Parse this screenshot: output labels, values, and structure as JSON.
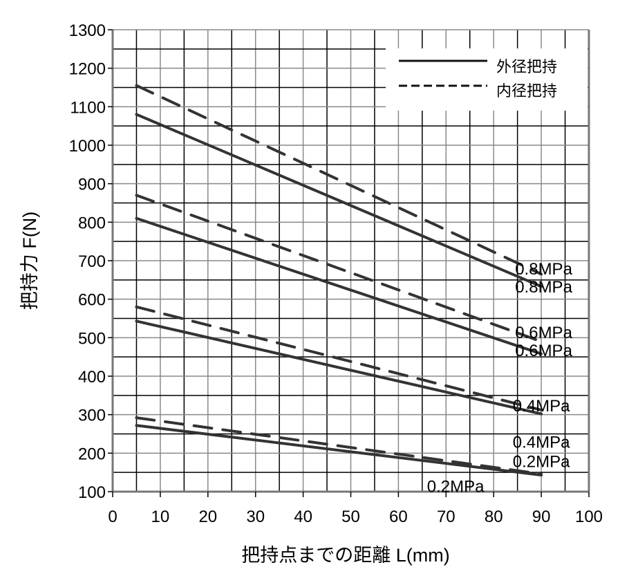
{
  "chart_data": {
    "type": "line",
    "title": "",
    "xlabel": "把持点までの距離  L(mm)",
    "ylabel": "把持力  F(N)",
    "xlim": [
      0,
      100
    ],
    "ylim": [
      100,
      1300
    ],
    "xticks": [
      0,
      10,
      20,
      30,
      40,
      50,
      60,
      70,
      80,
      90,
      100
    ],
    "yticks": [
      100,
      200,
      300,
      400,
      500,
      600,
      700,
      800,
      900,
      1000,
      1100,
      1200,
      1300
    ],
    "grid": true,
    "legend": {
      "placement": "top-right",
      "entries": [
        {
          "label": "外径把持",
          "style": "solid"
        },
        {
          "label": "内径把持",
          "style": "dashed"
        }
      ]
    },
    "series": [
      {
        "name": "外径把持 0.8MPa",
        "style": "solid",
        "x": [
          5,
          90
        ],
        "y": [
          1080,
          633
        ]
      },
      {
        "name": "内径把持 0.8MPa",
        "style": "dashed",
        "x": [
          5,
          90
        ],
        "y": [
          1155,
          665
        ]
      },
      {
        "name": "外径把持 0.6MPa",
        "style": "solid",
        "x": [
          5,
          90
        ],
        "y": [
          810,
          458
        ]
      },
      {
        "name": "内径把持 0.6MPa",
        "style": "dashed",
        "x": [
          5,
          90
        ],
        "y": [
          870,
          490
        ]
      },
      {
        "name": "外径把持 0.4MPa",
        "style": "solid",
        "x": [
          5,
          90
        ],
        "y": [
          543,
          302
        ]
      },
      {
        "name": "内径把持 0.4MPa",
        "style": "dashed",
        "x": [
          5,
          90
        ],
        "y": [
          580,
          312
        ]
      },
      {
        "name": "外径把持 0.2MPa",
        "style": "solid",
        "x": [
          5,
          90
        ],
        "y": [
          272,
          143
        ]
      },
      {
        "name": "内径把持 0.2MPa",
        "style": "dashed",
        "x": [
          5,
          90
        ],
        "y": [
          292,
          146
        ]
      }
    ],
    "annotations": [
      {
        "text": "0.8MPa",
        "x": 84.5,
        "y": 680
      },
      {
        "text": "0.8MPa",
        "x": 84.5,
        "y": 650
      },
      {
        "text": "0.6MPa",
        "x": 84.5,
        "y": 515
      },
      {
        "text": "0.6MPa",
        "x": 84.5,
        "y": 490
      },
      {
        "text": "0.4MPa",
        "x": 84,
        "y": 325
      },
      {
        "text": "0.4MPa",
        "x": 84,
        "y": 230
      },
      {
        "text": "0.2MPa",
        "x": 84,
        "y": 180
      },
      {
        "text": "0.2MPa",
        "x": 66,
        "y": 115
      }
    ]
  }
}
